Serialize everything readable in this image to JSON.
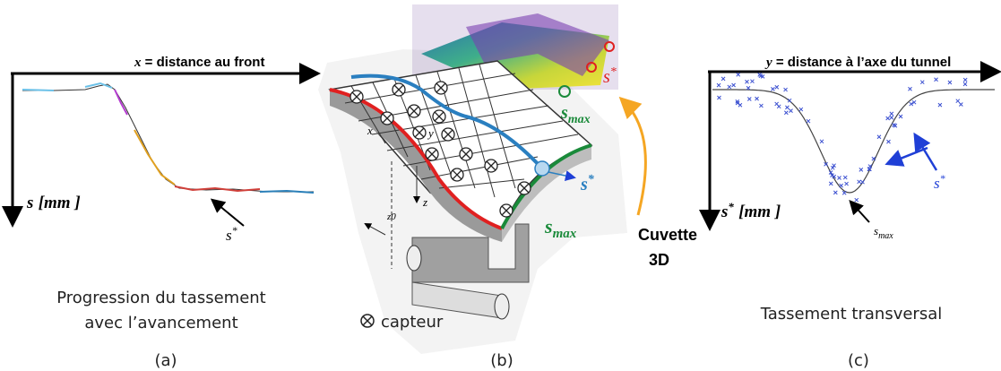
{
  "panel_a": {
    "x_axis_label": {
      "var": "x",
      "rest": " = distance au front"
    },
    "y_axis_label": {
      "var": "s",
      "unit": "[mm ]"
    },
    "annotation": {
      "base": "s",
      "sup": "*"
    },
    "caption": [
      "Progression du tassement",
      "avec l’avancement"
    ],
    "label": "(a)"
  },
  "panel_b": {
    "axis_x": "x",
    "axis_y": "y",
    "axis_z": "z",
    "axis_z0": "z0",
    "inset_s_star": {
      "base": "s",
      "sup": "*"
    },
    "inset_s_max": {
      "base": "s",
      "sub": "max"
    },
    "plate_s_star": {
      "base": "s",
      "sup": "*"
    },
    "plate_s_max": {
      "base": "s",
      "sub": "max"
    },
    "arrow_label": [
      "Cuvette",
      "3D"
    ],
    "legend": "capteur",
    "label": "(b)"
  },
  "panel_c": {
    "x_axis_label": {
      "var": "y",
      "rest": " = distance à l’axe du tunnel"
    },
    "y_axis_label": {
      "base": "s",
      "sup": "*",
      "unit": "[mm ]"
    },
    "annotation_star": {
      "base": "s",
      "sup": "*"
    },
    "annotation_max": {
      "base": "s",
      "sub": "max"
    },
    "caption": "Tassement transversal",
    "label": "(c)"
  }
}
